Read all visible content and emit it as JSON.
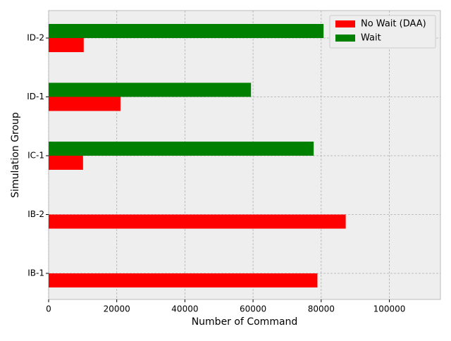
{
  "chart_data": {
    "type": "barh",
    "xlabel": "Number of Command",
    "ylabel": "Simulation Group",
    "categories": [
      "IB-1",
      "IB-2",
      "IC-1",
      "ID-1",
      "ID-2"
    ],
    "series": [
      {
        "name": "No Wait (DAA)",
        "color": "#ff0000",
        "values": [
          78900,
          87200,
          10100,
          21100,
          10300
        ]
      },
      {
        "name": "Wait",
        "color": "#008000",
        "values": [
          null,
          null,
          77800,
          59400,
          80700
        ]
      }
    ],
    "xlim": [
      0,
      115000
    ],
    "xticks": [
      0,
      20000,
      40000,
      60000,
      80000,
      100000
    ],
    "grid": true,
    "legend": "upper right"
  }
}
